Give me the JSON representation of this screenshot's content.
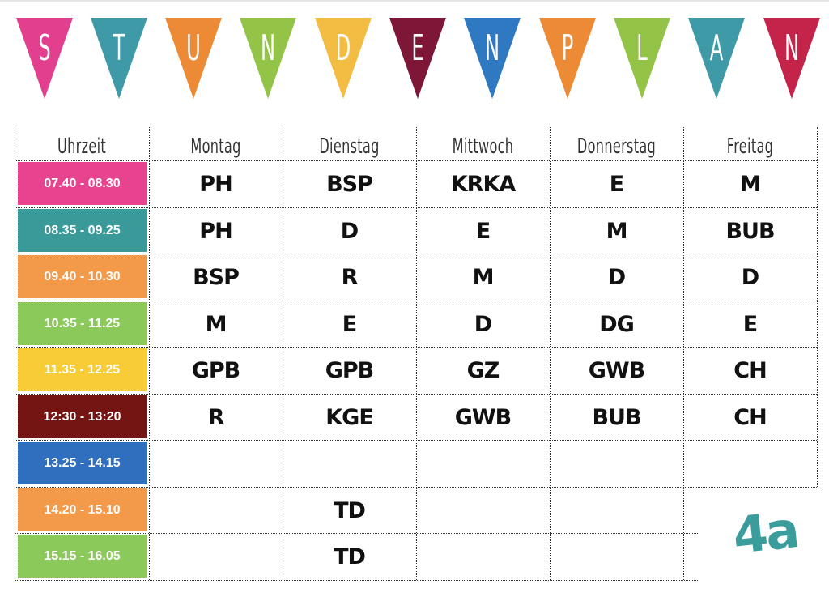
{
  "banner": {
    "letters": [
      "S",
      "T",
      "U",
      "N",
      "D",
      "E",
      "N",
      "P",
      "L",
      "A",
      "N"
    ],
    "colors": [
      "#e23f8f",
      "#3d9aa6",
      "#ec8a35",
      "#94c447",
      "#f2bd42",
      "#7d1637",
      "#2f78c2",
      "#ec8a35",
      "#94c447",
      "#3d9aa6",
      "#c4244a"
    ]
  },
  "headers": [
    "Uhrzeit",
    "Montag",
    "Dienstag",
    "Mittwoch",
    "Donnerstag",
    "Freitag"
  ],
  "times": [
    {
      "label": "07.40 - 08.30",
      "color": "#e8438e"
    },
    {
      "label": "08.35 - 09.25",
      "color": "#3a9a9a"
    },
    {
      "label": "09.40 - 10.30",
      "color": "#f39a4a"
    },
    {
      "label": "10.35 - 11.25",
      "color": "#8cc95b"
    },
    {
      "label": "11.35 - 12.25",
      "color": "#f7cc37"
    },
    {
      "label": "12:30 - 13:20",
      "color": "#741413"
    },
    {
      "label": "13.25 - 14.15",
      "color": "#2f6fbe"
    },
    {
      "label": "14.20 - 15.10",
      "color": "#f39a4a"
    },
    {
      "label": "15.15 - 16.05",
      "color": "#8cc95b"
    }
  ],
  "schedule": [
    [
      "PH",
      "BSP",
      "KRKA",
      "E",
      "M"
    ],
    [
      "PH",
      "D",
      "E",
      "M",
      "BUB"
    ],
    [
      "BSP",
      "R",
      "M",
      "D",
      "D"
    ],
    [
      "M",
      "E",
      "D",
      "DG",
      "E"
    ],
    [
      "GPB",
      "GPB",
      "GZ",
      "GWB",
      "CH"
    ],
    [
      "R",
      "KGE",
      "GWB",
      "BUB",
      "CH"
    ],
    [
      "",
      "",
      "",
      "",
      ""
    ],
    [
      "",
      "TD",
      "",
      "",
      ""
    ],
    [
      "",
      "TD",
      "",
      "",
      ""
    ]
  ],
  "class_label": "4a"
}
